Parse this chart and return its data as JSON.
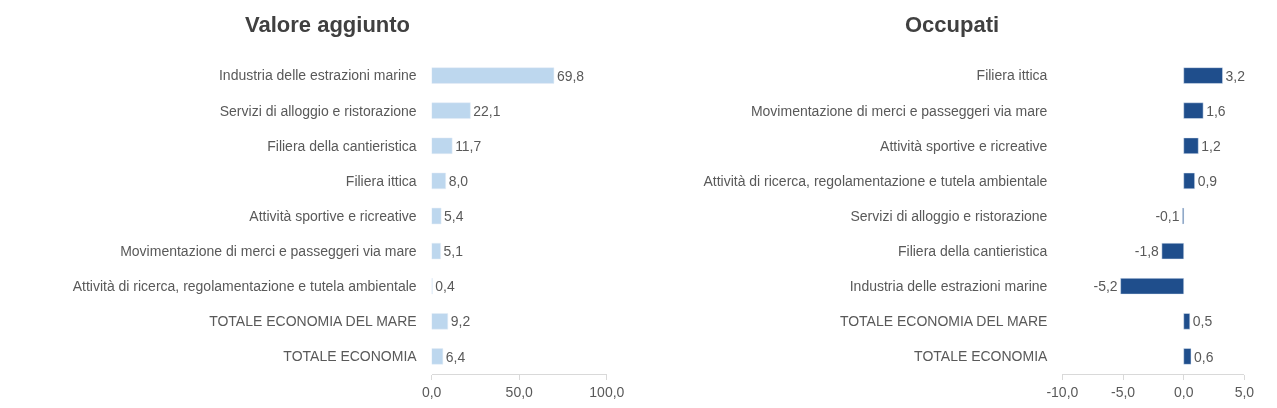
{
  "chart_data": [
    {
      "type": "bar",
      "orientation": "horizontal",
      "title": "Valore aggiunto",
      "color": "#bdd7ee",
      "categories": [
        "Industria delle estrazioni marine",
        "Servizi di alloggio e ristorazione",
        "Filiera della cantieristica",
        "Filiera ittica",
        "Attività sportive e ricreative",
        "Movimentazione di merci e passeggeri via mare",
        "Attività di ricerca, regolamentazione e tutela ambientale",
        "TOTALE ECONOMIA DEL MARE",
        "TOTALE ECONOMIA"
      ],
      "values": [
        69.8,
        22.1,
        11.7,
        8.0,
        5.4,
        5.1,
        0.4,
        9.2,
        6.4
      ],
      "value_labels": [
        "69,8",
        "22,1",
        "11,7",
        "8,0",
        "5,4",
        "5,1",
        "0,4",
        "9,2",
        "6,4"
      ],
      "xlim": [
        0,
        100
      ],
      "xticks": [
        {
          "value": 0,
          "label": "0,0"
        },
        {
          "value": 50,
          "label": "50,0"
        },
        {
          "value": 100,
          "label": "100,0"
        }
      ]
    },
    {
      "type": "bar",
      "orientation": "horizontal",
      "title": "Occupati",
      "color": "#1f4e8c",
      "categories": [
        "Filiera ittica",
        "Movimentazione di merci e passeggeri via mare",
        "Attività sportive e ricreative",
        "Attività di ricerca, regolamentazione e tutela ambientale",
        "Servizi di alloggio e ristorazione",
        "Filiera della cantieristica",
        "Industria delle estrazioni marine",
        "TOTALE ECONOMIA DEL MARE",
        "TOTALE ECONOMIA"
      ],
      "values": [
        3.2,
        1.6,
        1.2,
        0.9,
        -0.1,
        -1.8,
        -5.2,
        0.5,
        0.6
      ],
      "value_labels": [
        "3,2",
        "1,6",
        "1,2",
        "0,9",
        "-0,1",
        "-1,8",
        "-5,2",
        "0,5",
        "0,6"
      ],
      "xlim": [
        -10,
        5
      ],
      "xticks": [
        {
          "value": -10,
          "label": "-10,0"
        },
        {
          "value": -5,
          "label": "-5,0"
        },
        {
          "value": 0,
          "label": "0,0"
        },
        {
          "value": 5,
          "label": "5,0"
        }
      ]
    }
  ]
}
